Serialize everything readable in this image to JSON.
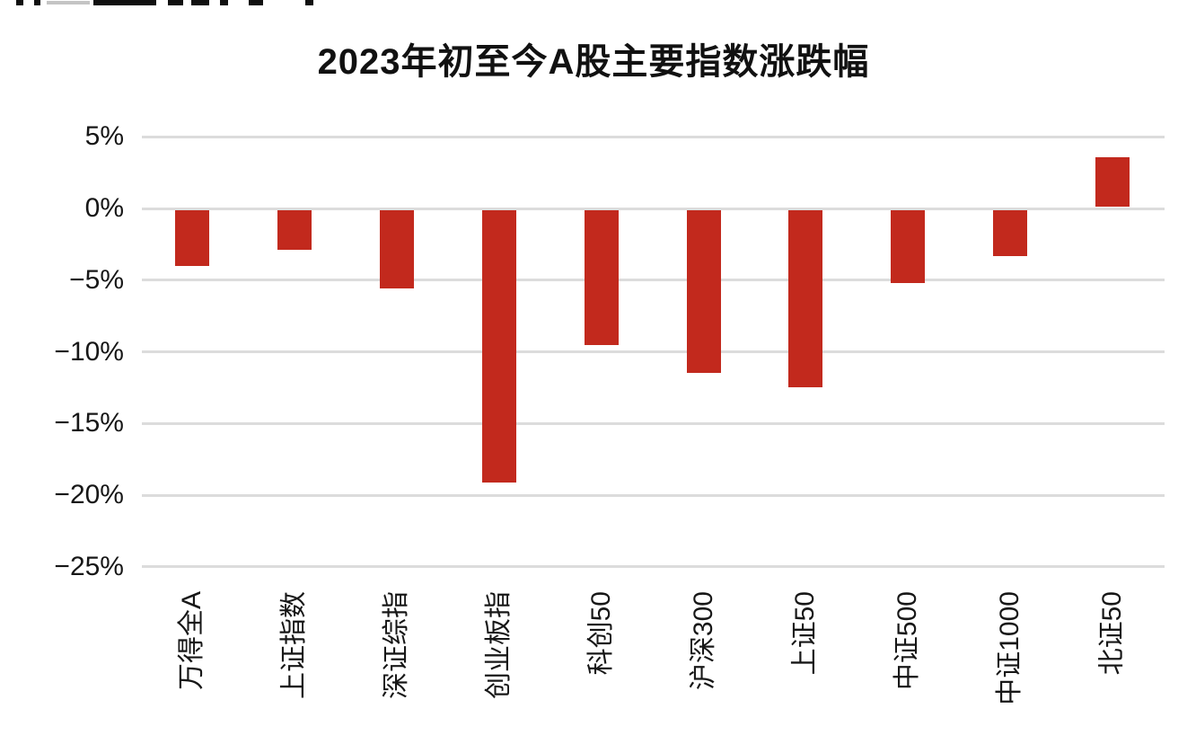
{
  "page": {
    "background": "#ffffff",
    "clipped_top_text": {
      "description": "bottom slivers of a text line cut off by the top edge of the screenshot",
      "marks": [
        {
          "x": 18,
          "w": 8,
          "light": false
        },
        {
          "x": 38,
          "w": 7,
          "light": false
        },
        {
          "x": 52,
          "w": 48,
          "light": true
        },
        {
          "x": 104,
          "w": 70,
          "light": false
        },
        {
          "x": 187,
          "w": 17,
          "light": false
        },
        {
          "x": 213,
          "w": 20,
          "light": false
        },
        {
          "x": 245,
          "w": 9,
          "light": false
        },
        {
          "x": 277,
          "w": 16,
          "light": false
        },
        {
          "x": 340,
          "w": 9,
          "light": false
        }
      ]
    }
  },
  "chart_data": {
    "type": "bar",
    "title": "2023年初至今A股主要指数涨跌幅",
    "categories": [
      "万得全A",
      "上证指数",
      "深证综指",
      "创业板指",
      "科创50",
      "沪深300",
      "上证50",
      "中证500",
      "中证1000",
      "北证50"
    ],
    "values": [
      -4.0,
      -2.9,
      -5.6,
      -19.1,
      -9.5,
      -11.5,
      -12.5,
      -5.2,
      -3.3,
      3.6
    ],
    "unit": "%",
    "xlabel": "",
    "ylabel": "",
    "yticks": [
      5,
      0,
      -5,
      -10,
      -15,
      -20,
      -25
    ],
    "ytick_labels": [
      "5%",
      "0%",
      "−5%",
      "−10%",
      "−15%",
      "−20%",
      "−25%"
    ],
    "ylim": [
      -27,
      7
    ],
    "grid": true,
    "legend": false,
    "x_label_rotation": -90,
    "bar_color": "#c2291d",
    "gridline_color": "#dcdcdc",
    "text_color": "#171717"
  }
}
